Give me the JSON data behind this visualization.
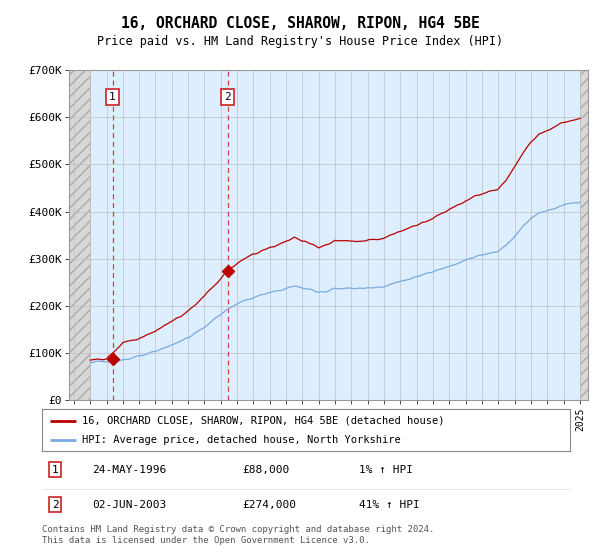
{
  "title": "16, ORCHARD CLOSE, SHAROW, RIPON, HG4 5BE",
  "subtitle": "Price paid vs. HM Land Registry's House Price Index (HPI)",
  "legend_line1": "16, ORCHARD CLOSE, SHAROW, RIPON, HG4 5BE (detached house)",
  "legend_line2": "HPI: Average price, detached house, North Yorkshire",
  "footnote": "Contains HM Land Registry data © Crown copyright and database right 2024.\nThis data is licensed under the Open Government Licence v3.0.",
  "sales": [
    {
      "label": "1",
      "date": "24-MAY-1996",
      "price": 88000,
      "hpi_change": "1% ↑ HPI",
      "year": 1996.37
    },
    {
      "label": "2",
      "date": "02-JUN-2003",
      "price": 274000,
      "hpi_change": "41% ↑ HPI",
      "year": 2003.42
    }
  ],
  "hpi_color": "#7aaadd",
  "price_color": "#bb0000",
  "sale_dot_color": "#bb0000",
  "dashed_line_color": "#cc2222",
  "ylim": [
    0,
    700000
  ],
  "yticks": [
    0,
    100000,
    200000,
    300000,
    400000,
    500000,
    600000,
    700000
  ],
  "ytick_labels": [
    "£0",
    "£100K",
    "£200K",
    "£300K",
    "£400K",
    "£500K",
    "£600K",
    "£700K"
  ],
  "xlim_start": 1993.7,
  "xlim_end": 2025.5,
  "bg_color": "#ddeeff",
  "hatch_color": "#c8c8c8"
}
